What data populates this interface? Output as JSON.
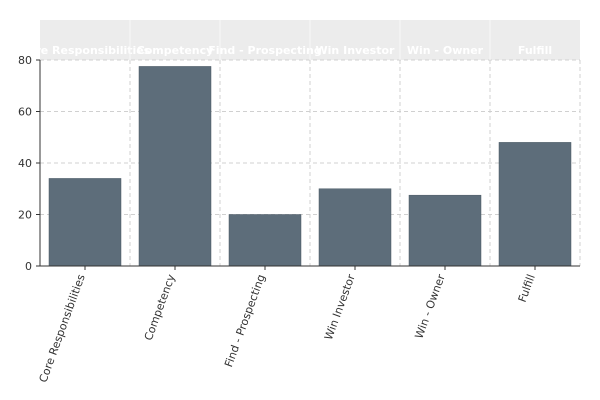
{
  "chart_data": {
    "type": "bar",
    "categories": [
      "Core Responsibilities",
      "Competency",
      "Find - Prospecting",
      "Win Investor",
      "Win - Owner",
      "Fulfill"
    ],
    "values": [
      34,
      77.5,
      20,
      30,
      27.5,
      48
    ],
    "ylim": [
      0,
      80
    ],
    "yticks": [
      0,
      20,
      40,
      60,
      80
    ],
    "grid": true,
    "legend": "none",
    "bar_color": "#5d6d7a",
    "header_color": "#ececec",
    "title": "",
    "xlabel": "",
    "ylabel": ""
  }
}
